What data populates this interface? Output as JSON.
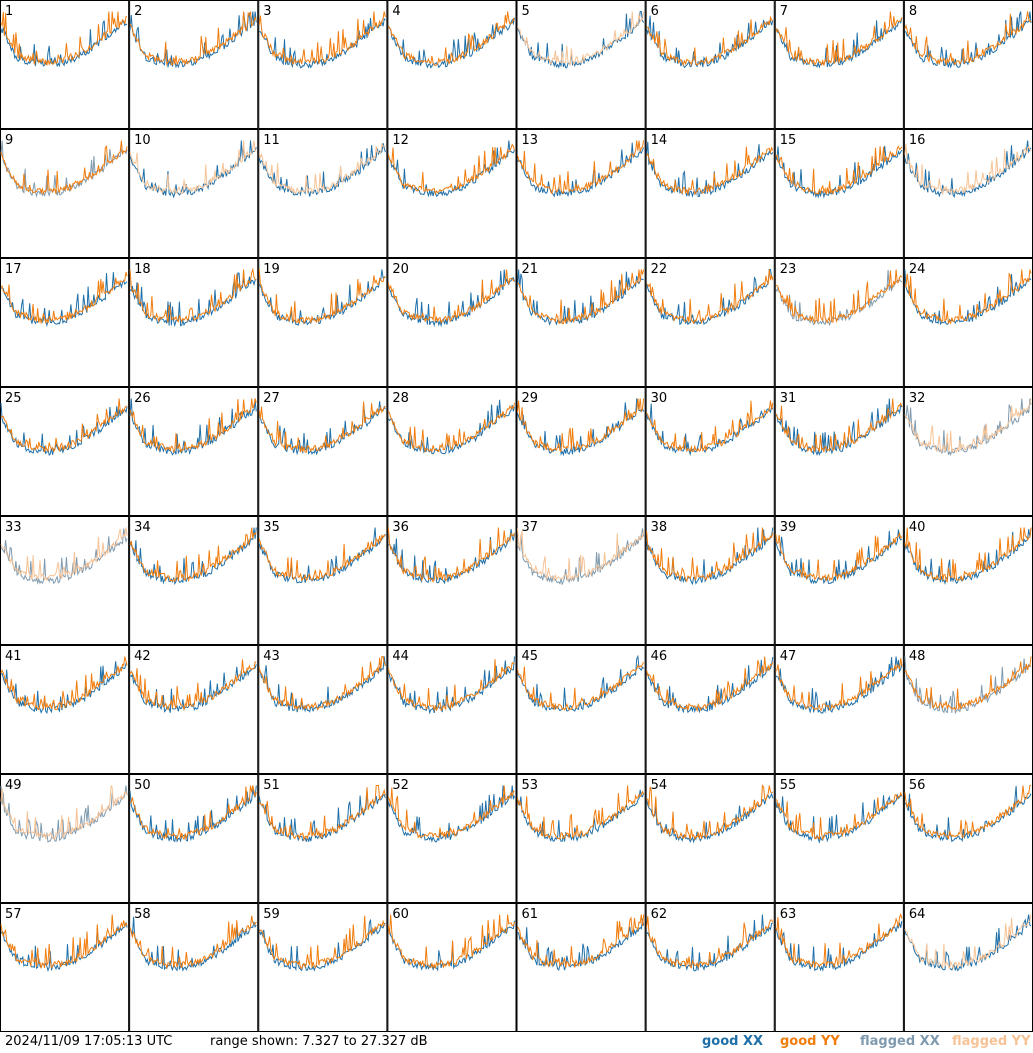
{
  "footer": {
    "timestamp": "2024/11/09 17:05:13 UTC",
    "range": "range shown: 7.327 to 27.327 dB"
  },
  "legend": {
    "good_xx": "good XX",
    "good_yy": "good YY",
    "flagged_xx": "flagged XX",
    "flagged_yy": "flagged YY"
  },
  "colors": {
    "good_xx": "#1f6fa8",
    "good_yy": "#f07d0e",
    "flagged_xx": "#7f9aae",
    "flagged_yy": "#f6c396"
  },
  "chart_data": {
    "type": "line",
    "ylim": [
      7.327,
      27.327
    ],
    "yunit": "dB",
    "panels": [
      {
        "label": "1",
        "xx": "good",
        "yy": "good"
      },
      {
        "label": "2",
        "xx": "good",
        "yy": "good"
      },
      {
        "label": "3",
        "xx": "good",
        "yy": "good"
      },
      {
        "label": "4",
        "xx": "good",
        "yy": "good"
      },
      {
        "label": "5",
        "xx": "good",
        "yy": "flagged"
      },
      {
        "label": "6",
        "xx": "good",
        "yy": "good"
      },
      {
        "label": "7",
        "xx": "good",
        "yy": "good"
      },
      {
        "label": "8",
        "xx": "good",
        "yy": "good"
      },
      {
        "label": "9",
        "xx": "flagged",
        "yy": "good"
      },
      {
        "label": "10",
        "xx": "good",
        "yy": "flagged"
      },
      {
        "label": "11",
        "xx": "good",
        "yy": "flagged"
      },
      {
        "label": "12",
        "xx": "good",
        "yy": "good"
      },
      {
        "label": "13",
        "xx": "good",
        "yy": "good"
      },
      {
        "label": "14",
        "xx": "good",
        "yy": "good"
      },
      {
        "label": "15",
        "xx": "good",
        "yy": "good"
      },
      {
        "label": "16",
        "xx": "good",
        "yy": "flagged"
      },
      {
        "label": "17",
        "xx": "good",
        "yy": "good"
      },
      {
        "label": "18",
        "xx": "good",
        "yy": "good"
      },
      {
        "label": "19",
        "xx": "good",
        "yy": "good"
      },
      {
        "label": "20",
        "xx": "good",
        "yy": "good"
      },
      {
        "label": "21",
        "xx": "good",
        "yy": "good"
      },
      {
        "label": "22",
        "xx": "good",
        "yy": "good"
      },
      {
        "label": "23",
        "xx": "flagged",
        "yy": "good"
      },
      {
        "label": "24",
        "xx": "good",
        "yy": "good"
      },
      {
        "label": "25",
        "xx": "good",
        "yy": "good"
      },
      {
        "label": "26",
        "xx": "good",
        "yy": "good"
      },
      {
        "label": "27",
        "xx": "good",
        "yy": "good"
      },
      {
        "label": "28",
        "xx": "good",
        "yy": "good"
      },
      {
        "label": "29",
        "xx": "good",
        "yy": "good"
      },
      {
        "label": "30",
        "xx": "good",
        "yy": "good"
      },
      {
        "label": "31",
        "xx": "good",
        "yy": "good"
      },
      {
        "label": "32",
        "xx": "flagged",
        "yy": "flagged"
      },
      {
        "label": "33",
        "xx": "flagged",
        "yy": "flagged"
      },
      {
        "label": "34",
        "xx": "good",
        "yy": "good"
      },
      {
        "label": "35",
        "xx": "good",
        "yy": "good"
      },
      {
        "label": "36",
        "xx": "good",
        "yy": "good"
      },
      {
        "label": "37",
        "xx": "flagged",
        "yy": "flagged"
      },
      {
        "label": "38",
        "xx": "good",
        "yy": "good"
      },
      {
        "label": "39",
        "xx": "good",
        "yy": "good"
      },
      {
        "label": "40",
        "xx": "good",
        "yy": "good"
      },
      {
        "label": "41",
        "xx": "good",
        "yy": "good"
      },
      {
        "label": "42",
        "xx": "good",
        "yy": "good"
      },
      {
        "label": "43",
        "xx": "good",
        "yy": "good"
      },
      {
        "label": "44",
        "xx": "good",
        "yy": "good"
      },
      {
        "label": "45",
        "xx": "good",
        "yy": "good"
      },
      {
        "label": "46",
        "xx": "good",
        "yy": "good"
      },
      {
        "label": "47",
        "xx": "good",
        "yy": "good"
      },
      {
        "label": "48",
        "xx": "flagged",
        "yy": "good"
      },
      {
        "label": "49",
        "xx": "flagged",
        "yy": "flagged"
      },
      {
        "label": "50",
        "xx": "good",
        "yy": "good"
      },
      {
        "label": "51",
        "xx": "good",
        "yy": "good"
      },
      {
        "label": "52",
        "xx": "good",
        "yy": "good"
      },
      {
        "label": "53",
        "xx": "good",
        "yy": "good"
      },
      {
        "label": "54",
        "xx": "good",
        "yy": "good"
      },
      {
        "label": "55",
        "xx": "good",
        "yy": "good"
      },
      {
        "label": "56",
        "xx": "good",
        "yy": "good"
      },
      {
        "label": "57",
        "xx": "good",
        "yy": "good"
      },
      {
        "label": "58",
        "xx": "good",
        "yy": "good"
      },
      {
        "label": "59",
        "xx": "good",
        "yy": "good"
      },
      {
        "label": "60",
        "xx": "good",
        "yy": "good"
      },
      {
        "label": "61",
        "xx": "good",
        "yy": "good"
      },
      {
        "label": "62",
        "xx": "good",
        "yy": "good"
      },
      {
        "label": "63",
        "xx": "good",
        "yy": "good"
      },
      {
        "label": "64",
        "xx": "good",
        "yy": "flagged"
      }
    ]
  }
}
